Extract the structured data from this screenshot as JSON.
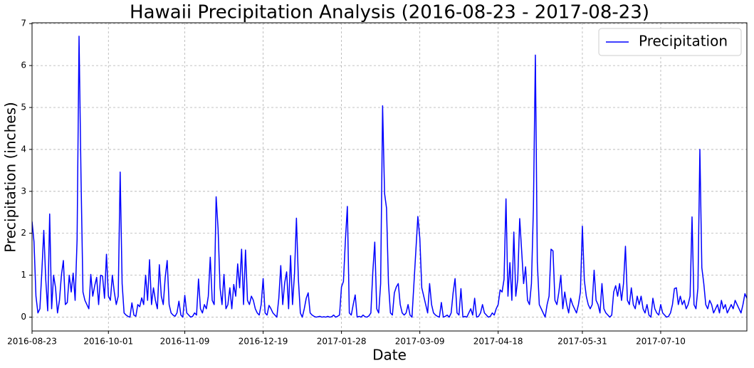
{
  "chart_data": {
    "type": "line",
    "title": "Hawaii Precipitation Analysis (2016-08-23 - 2017-08-23)",
    "x_label": "Date",
    "y_label": "Precipitation (inches)",
    "xlim": [
      "2016-08-23",
      "2017-08-23"
    ],
    "xticks": [
      "2016-08-23",
      "2016-10-01",
      "2016-11-09",
      "2016-12-19",
      "2017-01-28",
      "2017-03-09",
      "2017-04-18",
      "2017-05-31",
      "2017-07-10"
    ],
    "ylim": [
      -0.33,
      7.02
    ],
    "yticks": [
      0,
      1,
      2,
      3,
      4,
      5,
      6,
      7
    ],
    "grid": true,
    "legend": "upper right",
    "x": [
      "2016-08-23",
      "2016-08-24",
      "2016-08-25",
      "2016-08-26",
      "2016-08-27",
      "2016-08-28",
      "2016-08-29",
      "2016-08-30",
      "2016-08-31",
      "2016-09-01",
      "2016-09-02",
      "2016-09-03",
      "2016-09-04",
      "2016-09-05",
      "2016-09-06",
      "2016-09-07",
      "2016-09-08",
      "2016-09-09",
      "2016-09-10",
      "2016-09-11",
      "2016-09-12",
      "2016-09-13",
      "2016-09-14",
      "2016-09-15",
      "2016-09-16",
      "2016-09-17",
      "2016-09-18",
      "2016-09-19",
      "2016-09-20",
      "2016-09-21",
      "2016-09-22",
      "2016-09-23",
      "2016-09-24",
      "2016-09-25",
      "2016-09-26",
      "2016-09-27",
      "2016-09-28",
      "2016-09-29",
      "2016-09-30",
      "2016-10-01",
      "2016-10-02",
      "2016-10-03",
      "2016-10-04",
      "2016-10-05",
      "2016-10-06",
      "2016-10-07",
      "2016-10-08",
      "2016-10-09",
      "2016-10-10",
      "2016-10-11",
      "2016-10-12",
      "2016-10-13",
      "2016-10-14",
      "2016-10-15",
      "2016-10-16",
      "2016-10-17",
      "2016-10-18",
      "2016-10-19",
      "2016-10-20",
      "2016-10-21",
      "2016-10-22",
      "2016-10-23",
      "2016-10-24",
      "2016-10-25",
      "2016-10-26",
      "2016-10-27",
      "2016-10-28",
      "2016-10-29",
      "2016-10-30",
      "2016-10-31",
      "2016-11-01",
      "2016-11-02",
      "2016-11-03",
      "2016-11-04",
      "2016-11-05",
      "2016-11-06",
      "2016-11-07",
      "2016-11-08",
      "2016-11-09",
      "2016-11-10",
      "2016-11-11",
      "2016-11-12",
      "2016-11-13",
      "2016-11-14",
      "2016-11-15",
      "2016-11-16",
      "2016-11-17",
      "2016-11-18",
      "2016-11-19",
      "2016-11-20",
      "2016-11-21",
      "2016-11-22",
      "2016-11-23",
      "2016-11-24",
      "2016-11-25",
      "2016-11-26",
      "2016-11-27",
      "2016-11-28",
      "2016-11-29",
      "2016-11-30",
      "2016-12-01",
      "2016-12-02",
      "2016-12-03",
      "2016-12-04",
      "2016-12-05",
      "2016-12-06",
      "2016-12-07",
      "2016-12-08",
      "2016-12-09",
      "2016-12-10",
      "2016-12-11",
      "2016-12-12",
      "2016-12-13",
      "2016-12-14",
      "2016-12-15",
      "2016-12-16",
      "2016-12-17",
      "2016-12-18",
      "2016-12-19",
      "2016-12-20",
      "2016-12-21",
      "2016-12-22",
      "2016-12-23",
      "2016-12-24",
      "2016-12-25",
      "2016-12-26",
      "2016-12-27",
      "2016-12-28",
      "2016-12-29",
      "2016-12-30",
      "2016-12-31",
      "2017-01-01",
      "2017-01-02",
      "2017-01-03",
      "2017-01-04",
      "2017-01-05",
      "2017-01-06",
      "2017-01-07",
      "2017-01-08",
      "2017-01-09",
      "2017-01-10",
      "2017-01-11",
      "2017-01-12",
      "2017-01-13",
      "2017-01-14",
      "2017-01-15",
      "2017-01-16",
      "2017-01-17",
      "2017-01-18",
      "2017-01-19",
      "2017-01-20",
      "2017-01-21",
      "2017-01-22",
      "2017-01-23",
      "2017-01-24",
      "2017-01-25",
      "2017-01-26",
      "2017-01-27",
      "2017-01-28",
      "2017-01-29",
      "2017-01-30",
      "2017-01-31",
      "2017-02-01",
      "2017-02-02",
      "2017-02-03",
      "2017-02-04",
      "2017-02-05",
      "2017-02-06",
      "2017-02-07",
      "2017-02-08",
      "2017-02-09",
      "2017-02-10",
      "2017-02-11",
      "2017-02-12",
      "2017-02-13",
      "2017-02-14",
      "2017-02-15",
      "2017-02-16",
      "2017-02-17",
      "2017-02-18",
      "2017-02-19",
      "2017-02-20",
      "2017-02-21",
      "2017-02-22",
      "2017-02-23",
      "2017-02-24",
      "2017-02-25",
      "2017-02-26",
      "2017-02-27",
      "2017-02-28",
      "2017-03-01",
      "2017-03-02",
      "2017-03-03",
      "2017-03-04",
      "2017-03-05",
      "2017-03-06",
      "2017-03-07",
      "2017-03-08",
      "2017-03-09",
      "2017-03-10",
      "2017-03-11",
      "2017-03-12",
      "2017-03-13",
      "2017-03-14",
      "2017-03-15",
      "2017-03-16",
      "2017-03-17",
      "2017-03-18",
      "2017-03-19",
      "2017-03-20",
      "2017-03-21",
      "2017-03-22",
      "2017-03-23",
      "2017-03-24",
      "2017-03-25",
      "2017-03-26",
      "2017-03-27",
      "2017-03-28",
      "2017-03-29",
      "2017-03-30",
      "2017-03-31",
      "2017-04-01",
      "2017-04-02",
      "2017-04-03",
      "2017-04-04",
      "2017-04-05",
      "2017-04-06",
      "2017-04-07",
      "2017-04-08",
      "2017-04-09",
      "2017-04-10",
      "2017-04-11",
      "2017-04-12",
      "2017-04-13",
      "2017-04-14",
      "2017-04-15",
      "2017-04-16",
      "2017-04-17",
      "2017-04-18",
      "2017-04-19",
      "2017-04-20",
      "2017-04-21",
      "2017-04-22",
      "2017-04-23",
      "2017-04-24",
      "2017-04-25",
      "2017-04-26",
      "2017-04-27",
      "2017-04-28",
      "2017-04-29",
      "2017-04-30",
      "2017-05-01",
      "2017-05-02",
      "2017-05-03",
      "2017-05-04",
      "2017-05-05",
      "2017-05-06",
      "2017-05-07",
      "2017-05-08",
      "2017-05-09",
      "2017-05-10",
      "2017-05-11",
      "2017-05-12",
      "2017-05-13",
      "2017-05-14",
      "2017-05-15",
      "2017-05-16",
      "2017-05-17",
      "2017-05-18",
      "2017-05-19",
      "2017-05-20",
      "2017-05-21",
      "2017-05-22",
      "2017-05-23",
      "2017-05-24",
      "2017-05-25",
      "2017-05-26",
      "2017-05-27",
      "2017-05-28",
      "2017-05-29",
      "2017-05-30",
      "2017-05-31",
      "2017-06-01",
      "2017-06-02",
      "2017-06-03",
      "2017-06-04",
      "2017-06-05",
      "2017-06-06",
      "2017-06-07",
      "2017-06-08",
      "2017-06-09",
      "2017-06-10",
      "2017-06-11",
      "2017-06-12",
      "2017-06-13",
      "2017-06-14",
      "2017-06-15",
      "2017-06-16",
      "2017-06-17",
      "2017-06-18",
      "2017-06-19",
      "2017-06-20",
      "2017-06-21",
      "2017-06-22",
      "2017-06-23",
      "2017-06-24",
      "2017-06-25",
      "2017-06-26",
      "2017-06-27",
      "2017-06-28",
      "2017-06-29",
      "2017-06-30",
      "2017-07-01",
      "2017-07-02",
      "2017-07-03",
      "2017-07-04",
      "2017-07-05",
      "2017-07-06",
      "2017-07-07",
      "2017-07-08",
      "2017-07-09",
      "2017-07-10",
      "2017-07-11",
      "2017-07-12",
      "2017-07-13",
      "2017-07-14",
      "2017-07-15",
      "2017-07-16",
      "2017-07-17",
      "2017-07-18",
      "2017-07-19",
      "2017-07-20",
      "2017-07-21",
      "2017-07-22",
      "2017-07-23",
      "2017-07-24",
      "2017-07-25",
      "2017-07-26",
      "2017-07-27",
      "2017-07-28",
      "2017-07-29",
      "2017-07-30",
      "2017-07-31",
      "2017-08-01",
      "2017-08-02",
      "2017-08-03",
      "2017-08-04",
      "2017-08-05",
      "2017-08-06",
      "2017-08-07",
      "2017-08-08",
      "2017-08-09",
      "2017-08-10",
      "2017-08-11",
      "2017-08-12",
      "2017-08-13",
      "2017-08-14",
      "2017-08-15",
      "2017-08-16",
      "2017-08-17",
      "2017-08-18",
      "2017-08-19",
      "2017-08-20",
      "2017-08-21",
      "2017-08-22",
      "2017-08-23"
    ],
    "series": [
      {
        "name": "Precipitation",
        "color": "#0000ff",
        "values": [
          2.28,
          1.8,
          0.5,
          0.1,
          0.2,
          1.08,
          2.07,
          0.9,
          0.15,
          2.46,
          0.2,
          1.0,
          0.7,
          0.1,
          0.4,
          1.0,
          1.35,
          0.3,
          0.35,
          1.0,
          0.6,
          1.05,
          0.4,
          1.85,
          6.7,
          3.35,
          0.6,
          0.4,
          0.3,
          0.2,
          1.02,
          0.5,
          0.75,
          0.95,
          0.3,
          1.0,
          0.98,
          0.45,
          1.5,
          0.5,
          0.4,
          1.0,
          0.6,
          0.3,
          0.5,
          3.46,
          0.8,
          0.1,
          0.05,
          0.02,
          0.0,
          0.34,
          0.05,
          0.02,
          0.3,
          0.25,
          0.46,
          0.3,
          1.0,
          0.4,
          1.37,
          0.3,
          0.7,
          0.4,
          0.2,
          1.25,
          0.5,
          0.3,
          0.95,
          1.35,
          0.3,
          0.1,
          0.05,
          0.02,
          0.1,
          0.38,
          0.05,
          0.0,
          0.52,
          0.1,
          0.05,
          0.0,
          0.02,
          0.1,
          0.05,
          0.91,
          0.2,
          0.1,
          0.3,
          0.2,
          0.5,
          1.43,
          0.4,
          0.3,
          2.87,
          2.1,
          0.7,
          0.3,
          1.02,
          0.2,
          0.3,
          0.7,
          0.2,
          0.78,
          0.5,
          1.27,
          0.7,
          1.62,
          0.3,
          1.6,
          0.4,
          0.3,
          0.5,
          0.4,
          0.2,
          0.1,
          0.05,
          0.3,
          0.92,
          0.1,
          0.05,
          0.28,
          0.2,
          0.1,
          0.05,
          0.0,
          0.45,
          1.23,
          0.3,
          0.82,
          1.08,
          0.2,
          1.47,
          0.3,
          1.02,
          2.36,
          0.9,
          0.1,
          0.0,
          0.2,
          0.45,
          0.58,
          0.1,
          0.05,
          0.02,
          0.0,
          0.01,
          0.02,
          0.0,
          0.01,
          0.0,
          0.02,
          0.0,
          0.01,
          0.05,
          0.0,
          0.02,
          0.05,
          0.72,
          0.85,
          1.83,
          2.64,
          0.1,
          0.05,
          0.3,
          0.53,
          0.0,
          0.02,
          0.0,
          0.05,
          0.01,
          0.0,
          0.03,
          0.1,
          1.08,
          1.79,
          0.2,
          0.1,
          0.8,
          5.04,
          2.95,
          2.6,
          0.8,
          0.1,
          0.05,
          0.58,
          0.72,
          0.8,
          0.3,
          0.1,
          0.05,
          0.1,
          0.3,
          0.05,
          0.0,
          0.8,
          1.6,
          2.4,
          1.88,
          0.7,
          0.5,
          0.3,
          0.1,
          0.8,
          0.3,
          0.1,
          0.05,
          0.02,
          0.0,
          0.35,
          0.0,
          0.02,
          0.05,
          0.0,
          0.1,
          0.58,
          0.92,
          0.1,
          0.05,
          0.68,
          0.0,
          0.02,
          0.0,
          0.1,
          0.2,
          0.05,
          0.45,
          0.0,
          0.02,
          0.1,
          0.3,
          0.1,
          0.05,
          0.0,
          0.02,
          0.1,
          0.05,
          0.2,
          0.3,
          0.65,
          0.6,
          0.9,
          2.82,
          0.5,
          1.3,
          0.4,
          2.03,
          0.5,
          0.9,
          2.35,
          1.58,
          0.8,
          1.2,
          0.4,
          0.3,
          0.8,
          2.6,
          6.25,
          1.3,
          0.3,
          0.2,
          0.1,
          0.0,
          0.3,
          0.5,
          1.62,
          1.58,
          0.4,
          0.3,
          0.6,
          1.0,
          0.2,
          0.6,
          0.3,
          0.1,
          0.45,
          0.3,
          0.2,
          0.1,
          0.3,
          0.6,
          2.17,
          0.88,
          0.5,
          0.3,
          0.2,
          0.3,
          1.12,
          0.4,
          0.3,
          0.1,
          0.8,
          0.2,
          0.1,
          0.05,
          0.0,
          0.05,
          0.6,
          0.75,
          0.5,
          0.8,
          0.4,
          0.8,
          1.69,
          0.4,
          0.3,
          0.7,
          0.3,
          0.2,
          0.5,
          0.3,
          0.5,
          0.2,
          0.1,
          0.3,
          0.05,
          0.0,
          0.45,
          0.2,
          0.1,
          0.05,
          0.3,
          0.1,
          0.05,
          0.0,
          0.02,
          0.1,
          0.3,
          0.68,
          0.7,
          0.3,
          0.5,
          0.3,
          0.4,
          0.2,
          0.3,
          0.5,
          2.39,
          0.3,
          0.2,
          0.7,
          4.0,
          1.18,
          0.8,
          0.3,
          0.2,
          0.4,
          0.3,
          0.1,
          0.2,
          0.3,
          0.1,
          0.4,
          0.2,
          0.3,
          0.1,
          0.2,
          0.3,
          0.2,
          0.4,
          0.3,
          0.2,
          0.1,
          0.3,
          0.56,
          0.45
        ]
      }
    ]
  }
}
